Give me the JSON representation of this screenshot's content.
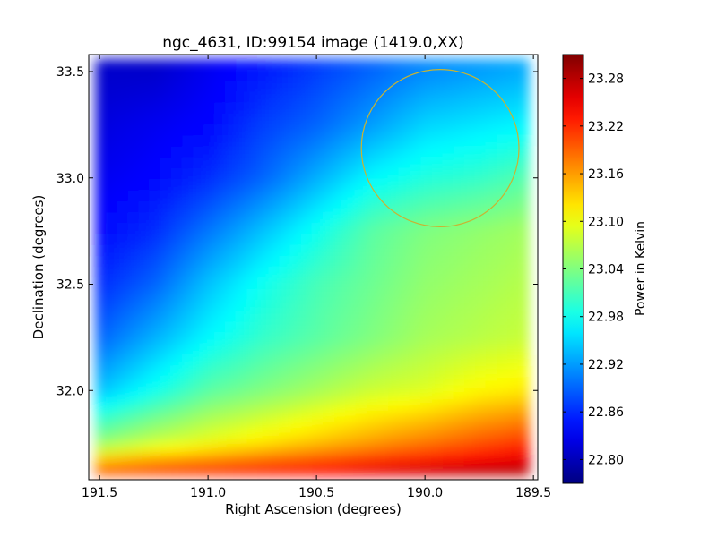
{
  "chart_data": {
    "type": "heatmap",
    "title": "ngc_4631, ID:99154 image (1419.0,XX)",
    "xlabel": "Right Ascension (degrees)",
    "ylabel": "Declination (degrees)",
    "xlim": [
      191.55,
      189.48
    ],
    "ylim": [
      31.58,
      33.58
    ],
    "x_ticks": [
      191.5,
      191.0,
      190.5,
      190.0,
      189.5
    ],
    "x_tick_labels": [
      "191.5",
      "191.0",
      "190.5",
      "190.0",
      "189.5"
    ],
    "y_ticks": [
      32.0,
      32.5,
      33.0,
      33.5
    ],
    "y_tick_labels": [
      "32.0",
      "32.5",
      "33.0",
      "33.5"
    ],
    "colormap": "jet",
    "colorbar": {
      "label": "Power in Kelvin",
      "vmin": 22.77,
      "vmax": 23.31,
      "ticks": [
        22.8,
        22.86,
        22.92,
        22.98,
        23.04,
        23.1,
        23.16,
        23.22,
        23.28
      ],
      "tick_labels": [
        "22.80",
        "22.86",
        "22.92",
        "22.98",
        "23.04",
        "23.10",
        "23.16",
        "23.22",
        "23.28"
      ]
    },
    "grid_x": [
      191.5,
      191.25,
      191.0,
      190.75,
      190.5,
      190.25,
      190.0,
      189.75,
      189.5
    ],
    "grid_y": [
      33.5,
      33.25,
      33.0,
      32.75,
      32.5,
      32.25,
      32.0,
      31.75,
      31.6
    ],
    "values": [
      [
        22.81,
        22.81,
        22.83,
        22.85,
        22.87,
        22.89,
        22.91,
        22.92,
        22.93
      ],
      [
        22.82,
        22.83,
        22.84,
        22.87,
        22.89,
        22.92,
        22.95,
        22.96,
        22.97
      ],
      [
        22.83,
        22.84,
        22.86,
        22.89,
        22.93,
        22.97,
        22.99,
        23.0,
        23.02
      ],
      [
        22.84,
        22.86,
        22.9,
        22.94,
        22.98,
        23.02,
        23.04,
        23.05,
        23.06
      ],
      [
        22.86,
        22.89,
        22.94,
        22.98,
        23.01,
        23.03,
        23.05,
        23.06,
        23.07
      ],
      [
        22.89,
        22.93,
        22.97,
        23.0,
        23.02,
        23.04,
        23.06,
        23.07,
        23.08
      ],
      [
        22.94,
        22.98,
        23.02,
        23.04,
        23.06,
        23.08,
        23.09,
        23.11,
        23.12
      ],
      [
        23.05,
        23.08,
        23.1,
        23.12,
        23.14,
        23.16,
        23.18,
        23.2,
        23.22
      ],
      [
        23.22,
        23.23,
        23.24,
        23.25,
        23.26,
        23.27,
        23.28,
        23.29,
        23.29
      ]
    ],
    "annotations": [
      {
        "type": "circle",
        "center": [
          189.93,
          33.14
        ],
        "radius_deg": 0.37,
        "color": "#c8b432"
      }
    ]
  }
}
